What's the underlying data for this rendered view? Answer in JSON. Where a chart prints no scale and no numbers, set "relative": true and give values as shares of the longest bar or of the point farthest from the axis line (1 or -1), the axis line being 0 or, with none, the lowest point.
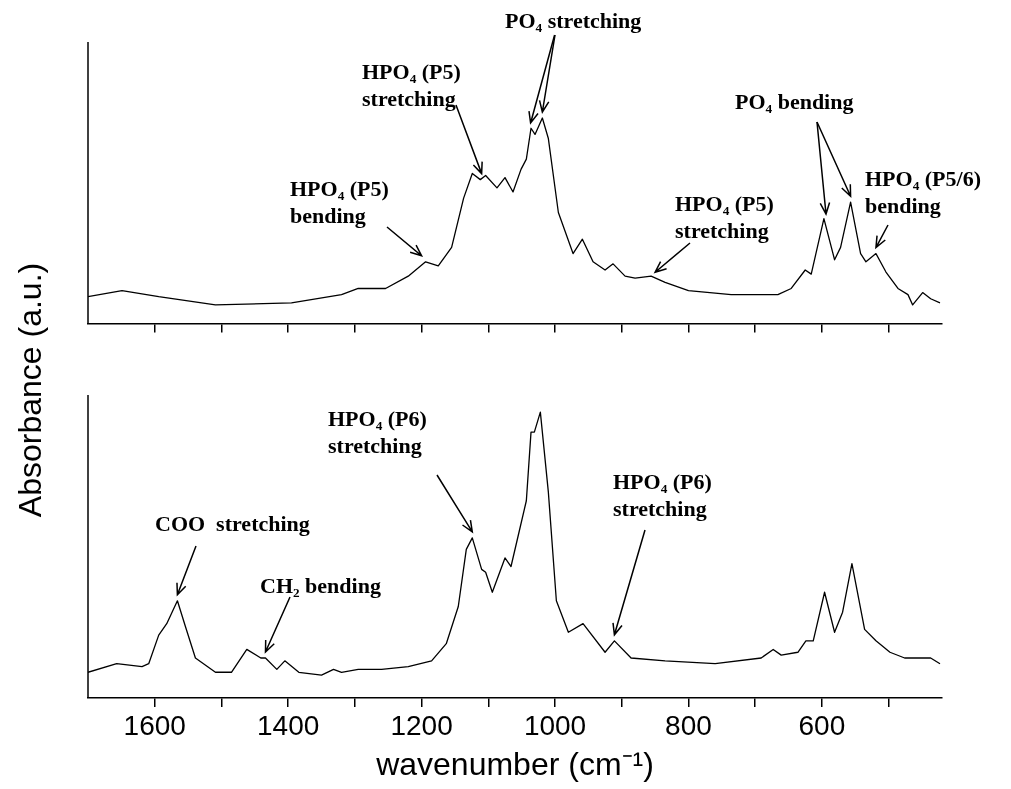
{
  "chart_data": [
    {
      "type": "line",
      "relative": true,
      "tick_labels": false,
      "ylabel": "Absorbance (a.u.)",
      "xlim": [
        1700,
        420
      ],
      "xticks": [
        1600,
        {
          "value": 1500,
          "label": null
        },
        1400,
        {
          "value": 1300,
          "label": null
        },
        1200,
        {
          "value": 1100,
          "label": null
        },
        1000,
        {
          "value": 900,
          "label": null
        },
        800,
        {
          "value": 700,
          "label": null
        },
        600,
        {
          "value": 500,
          "label": null
        }
      ],
      "x": [
        1700,
        1649,
        1594,
        1509,
        1395,
        1320,
        1295,
        1254,
        1220,
        1194,
        1175,
        1155,
        1137,
        1124,
        1112,
        1104,
        1087,
        1075,
        1063,
        1051,
        1043,
        1036,
        1030,
        1019,
        1010,
        995,
        973,
        959,
        943,
        925,
        913,
        895,
        880,
        856,
        835,
        800,
        736,
        666,
        646,
        625,
        616,
        597,
        581,
        572,
        557,
        542,
        534,
        519,
        504,
        486,
        471,
        464,
        449,
        437,
        423
      ],
      "series": [
        {
          "color": "#000000",
          "values": [
            0.13,
            0.16,
            0.13,
            0.09,
            0.1,
            0.14,
            0.17,
            0.17,
            0.23,
            0.3,
            0.28,
            0.37,
            0.61,
            0.73,
            0.7,
            0.72,
            0.66,
            0.71,
            0.64,
            0.75,
            0.8,
            0.95,
            0.92,
            1.0,
            0.9,
            0.54,
            0.34,
            0.41,
            0.3,
            0.26,
            0.29,
            0.23,
            0.22,
            0.23,
            0.2,
            0.16,
            0.14,
            0.14,
            0.17,
            0.26,
            0.24,
            0.51,
            0.31,
            0.37,
            0.59,
            0.34,
            0.3,
            0.34,
            0.25,
            0.17,
            0.14,
            0.09,
            0.15,
            0.12,
            0.1
          ]
        }
      ],
      "annotations": [
        {
          "text": "HPO₄ (P5) bending",
          "x": 1200,
          "y": 0.3
        },
        {
          "text": "HPO₄ (P5) stretching",
          "x": 1110,
          "y": 0.7
        },
        {
          "text": "PO₄ stretching",
          "x": 1019,
          "y": 1.0
        },
        {
          "text": "HPO₄ (P5) stretching",
          "x": 850,
          "y": 0.22
        },
        {
          "text": "PO₄ bending",
          "x": 557,
          "y": 0.59
        },
        {
          "text": "HPO₄ (P5/6) bending",
          "x": 519,
          "y": 0.34
        }
      ]
    },
    {
      "type": "line",
      "relative": true,
      "tick_labels": "x",
      "xlabel": "wavenumber (cm⁻¹)",
      "xlim": [
        1700,
        420
      ],
      "xticks": [
        1600,
        {
          "value": 1500,
          "label": null
        },
        1400,
        {
          "value": 1300,
          "label": null
        },
        1200,
        {
          "value": 1100,
          "label": null
        },
        1000,
        {
          "value": 900,
          "label": null
        },
        800,
        {
          "value": 700,
          "label": null
        },
        600,
        {
          "value": 500,
          "label": null
        }
      ],
      "x": [
        1700,
        1657,
        1619,
        1609,
        1594,
        1582,
        1566,
        1554,
        1539,
        1509,
        1485,
        1462,
        1441,
        1434,
        1417,
        1405,
        1384,
        1350,
        1332,
        1320,
        1295,
        1260,
        1220,
        1185,
        1163,
        1145,
        1133,
        1124,
        1110,
        1104,
        1094,
        1075,
        1066,
        1052,
        1043,
        1036,
        1031,
        1022,
        1010,
        998,
        980,
        958,
        925,
        911,
        886,
        835,
        760,
        691,
        673,
        661,
        636,
        624,
        613,
        596,
        581,
        569,
        555,
        536,
        519,
        498,
        476,
        456,
        437,
        423
      ],
      "series": [
        {
          "color": "#000000",
          "values": [
            0.09,
            0.12,
            0.11,
            0.12,
            0.22,
            0.26,
            0.34,
            0.25,
            0.14,
            0.09,
            0.09,
            0.17,
            0.14,
            0.14,
            0.1,
            0.13,
            0.09,
            0.08,
            0.1,
            0.09,
            0.1,
            0.1,
            0.11,
            0.13,
            0.19,
            0.32,
            0.52,
            0.56,
            0.45,
            0.44,
            0.37,
            0.49,
            0.46,
            0.6,
            0.69,
            0.93,
            0.93,
            1.0,
            0.72,
            0.34,
            0.23,
            0.26,
            0.16,
            0.2,
            0.14,
            0.13,
            0.12,
            0.14,
            0.17,
            0.15,
            0.16,
            0.2,
            0.2,
            0.37,
            0.23,
            0.3,
            0.47,
            0.24,
            0.2,
            0.16,
            0.14,
            0.14,
            0.14,
            0.12
          ]
        }
      ],
      "annotations": [
        {
          "text": "COO  stretching",
          "x": 1566,
          "y": 0.34
        },
        {
          "text": "CH₂ bending",
          "x": 1434,
          "y": 0.14
        },
        {
          "text": "HPO₄ (P6) stretching",
          "x": 1124,
          "y": 0.56
        },
        {
          "text": "HPO₄ (P6) stretching",
          "x": 911,
          "y": 0.2
        }
      ]
    }
  ]
}
